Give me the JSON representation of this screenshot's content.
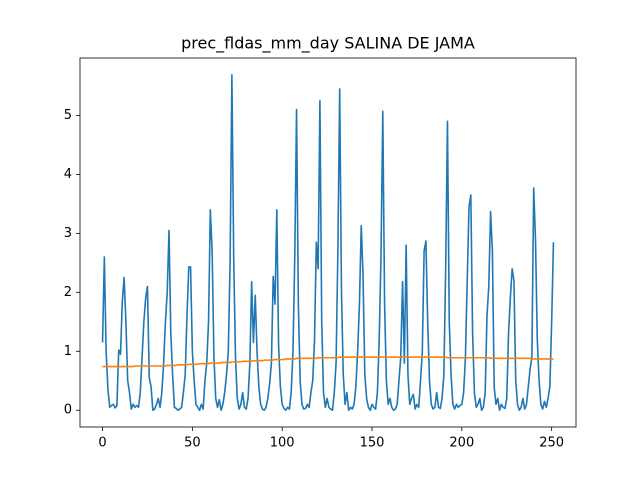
{
  "chart_data": {
    "type": "line",
    "title": "prec_fldas_mm_day SALINA DE JAMA",
    "x": [
      0,
      1,
      2,
      3,
      4,
      5,
      6,
      7,
      8,
      9,
      10,
      11,
      12,
      13,
      14,
      15,
      16,
      17,
      18,
      19,
      20,
      21,
      22,
      23,
      24,
      25,
      26,
      27,
      28,
      29,
      30,
      31,
      32,
      33,
      34,
      35,
      36,
      37,
      38,
      39,
      40,
      41,
      42,
      43,
      44,
      45,
      46,
      47,
      48,
      49,
      50,
      51,
      52,
      53,
      54,
      55,
      56,
      57,
      58,
      59,
      60,
      61,
      62,
      63,
      64,
      65,
      66,
      67,
      68,
      69,
      70,
      71,
      72,
      73,
      74,
      75,
      76,
      77,
      78,
      79,
      80,
      81,
      82,
      83,
      84,
      85,
      86,
      87,
      88,
      89,
      90,
      91,
      92,
      93,
      94,
      95,
      96,
      97,
      98,
      99,
      100,
      101,
      102,
      103,
      104,
      105,
      106,
      107,
      108,
      109,
      110,
      111,
      112,
      113,
      114,
      115,
      116,
      117,
      118,
      119,
      120,
      121,
      122,
      123,
      124,
      125,
      126,
      127,
      128,
      129,
      130,
      131,
      132,
      133,
      134,
      135,
      136,
      137,
      138,
      139,
      140,
      141,
      142,
      143,
      144,
      145,
      146,
      147,
      148,
      149,
      150,
      151,
      152,
      153,
      154,
      155,
      156,
      157,
      158,
      159,
      160,
      161,
      162,
      163,
      164,
      165,
      166,
      167,
      168,
      169,
      170,
      171,
      172,
      173,
      174,
      175,
      176,
      177,
      178,
      179,
      180,
      181,
      182,
      183,
      184,
      185,
      186,
      187,
      188,
      189,
      190,
      191,
      192,
      193,
      194,
      195,
      196,
      197,
      198,
      199,
      200,
      201,
      202,
      203,
      204,
      205,
      206,
      207,
      208,
      209,
      210,
      211,
      212,
      213,
      214,
      215,
      216,
      217,
      218,
      219,
      220,
      221,
      222,
      223,
      224,
      225,
      226,
      227,
      228,
      229,
      230,
      231,
      232,
      233,
      234,
      235,
      236,
      237,
      238,
      239,
      240,
      241,
      242,
      243,
      244,
      245,
      246,
      247,
      248,
      249,
      250,
      251
    ],
    "series": [
      {
        "color": "#1f77b4",
        "values": [
          1.15,
          2.6,
          1.0,
          0.35,
          0.05,
          0.08,
          0.1,
          0.04,
          0.08,
          1.02,
          0.95,
          1.85,
          2.25,
          1.5,
          0.5,
          0.3,
          0.02,
          0.1,
          0.05,
          0.08,
          0.05,
          0.3,
          0.9,
          1.5,
          1.9,
          2.1,
          0.55,
          0.4,
          0.0,
          0.02,
          0.1,
          0.2,
          0.05,
          0.3,
          0.8,
          1.5,
          2.0,
          3.05,
          1.3,
          0.6,
          0.05,
          0.03,
          0.0,
          0.02,
          0.05,
          0.3,
          0.6,
          1.6,
          2.43,
          2.43,
          1.0,
          0.5,
          0.1,
          0.05,
          0.0,
          0.1,
          0.02,
          0.5,
          0.8,
          1.5,
          3.4,
          2.7,
          0.9,
          0.2,
          0.05,
          0.18,
          0.0,
          0.1,
          0.3,
          0.6,
          1.0,
          2.5,
          5.69,
          2.6,
          0.9,
          0.2,
          0.02,
          0.1,
          0.3,
          0.05,
          0.02,
          0.2,
          0.8,
          2.18,
          1.15,
          1.95,
          1.0,
          0.4,
          0.1,
          0.02,
          0.0,
          0.05,
          0.2,
          0.45,
          0.8,
          2.27,
          1.8,
          3.4,
          1.1,
          0.4,
          0.1,
          0.03,
          0.0,
          0.05,
          0.02,
          0.3,
          1.0,
          2.6,
          5.1,
          1.8,
          0.5,
          0.1,
          0.02,
          0.03,
          0.1,
          0.05,
          0.3,
          0.5,
          1.2,
          2.85,
          2.4,
          5.25,
          1.5,
          0.3,
          0.05,
          0.2,
          0.05,
          0.02,
          0.0,
          0.3,
          0.8,
          2.7,
          5.45,
          2.0,
          0.6,
          0.1,
          0.3,
          0.0,
          0.05,
          0.02,
          0.1,
          0.4,
          1.0,
          1.8,
          3.13,
          2.3,
          0.6,
          0.2,
          0.05,
          0.0,
          0.1,
          0.05,
          0.02,
          0.3,
          1.2,
          2.6,
          5.07,
          1.8,
          0.5,
          0.1,
          0.2,
          0.05,
          0.0,
          0.02,
          0.1,
          0.5,
          0.9,
          2.18,
          0.8,
          2.8,
          0.6,
          0.1,
          0.2,
          0.27,
          0.02,
          0.1,
          0.05,
          0.5,
          1.0,
          2.7,
          2.87,
          1.5,
          0.5,
          0.1,
          0.02,
          0.05,
          0.3,
          0.05,
          0.03,
          0.2,
          0.6,
          2.4,
          4.9,
          1.5,
          0.6,
          0.1,
          0.02,
          0.1,
          0.05,
          0.08,
          0.1,
          0.3,
          0.9,
          2.2,
          3.45,
          3.65,
          1.3,
          0.3,
          0.05,
          0.1,
          0.2,
          0.0,
          0.05,
          0.3,
          1.6,
          2.1,
          3.37,
          2.7,
          0.4,
          0.1,
          0.2,
          0.0,
          0.1,
          0.05,
          0.03,
          0.2,
          1.3,
          1.9,
          2.4,
          2.2,
          0.5,
          0.1,
          0.0,
          0.05,
          0.2,
          0.02,
          0.1,
          0.4,
          0.7,
          0.9,
          3.77,
          2.9,
          1.2,
          0.5,
          0.1,
          0.02,
          0.15,
          0.05,
          0.2,
          0.4,
          1.5,
          2.85
        ]
      },
      {
        "color": "#ff7f0e",
        "values": [
          0.74,
          0.74,
          0.74,
          0.74,
          0.74,
          0.74,
          0.74,
          0.74,
          0.74,
          0.74,
          0.74,
          0.74,
          0.74,
          0.74,
          0.74,
          0.74,
          0.74,
          0.74,
          0.75,
          0.75,
          0.75,
          0.75,
          0.75,
          0.75,
          0.75,
          0.75,
          0.75,
          0.75,
          0.75,
          0.75,
          0.75,
          0.75,
          0.75,
          0.75,
          0.75,
          0.75,
          0.76,
          0.76,
          0.76,
          0.76,
          0.76,
          0.76,
          0.77,
          0.77,
          0.77,
          0.77,
          0.77,
          0.77,
          0.78,
          0.78,
          0.78,
          0.78,
          0.78,
          0.78,
          0.79,
          0.79,
          0.79,
          0.79,
          0.79,
          0.79,
          0.8,
          0.8,
          0.8,
          0.8,
          0.8,
          0.8,
          0.81,
          0.81,
          0.81,
          0.81,
          0.81,
          0.81,
          0.82,
          0.82,
          0.82,
          0.82,
          0.82,
          0.82,
          0.83,
          0.83,
          0.83,
          0.83,
          0.83,
          0.83,
          0.84,
          0.84,
          0.84,
          0.84,
          0.84,
          0.84,
          0.85,
          0.85,
          0.85,
          0.85,
          0.85,
          0.85,
          0.86,
          0.86,
          0.86,
          0.86,
          0.86,
          0.86,
          0.87,
          0.87,
          0.87,
          0.87,
          0.87,
          0.87,
          0.88,
          0.88,
          0.88,
          0.88,
          0.88,
          0.88,
          0.88,
          0.88,
          0.88,
          0.88,
          0.88,
          0.88,
          0.89,
          0.89,
          0.89,
          0.89,
          0.89,
          0.89,
          0.89,
          0.89,
          0.89,
          0.89,
          0.89,
          0.89,
          0.9,
          0.9,
          0.9,
          0.9,
          0.9,
          0.9,
          0.9,
          0.9,
          0.9,
          0.9,
          0.9,
          0.9,
          0.9,
          0.9,
          0.9,
          0.9,
          0.9,
          0.9,
          0.9,
          0.9,
          0.9,
          0.9,
          0.9,
          0.9,
          0.9,
          0.9,
          0.9,
          0.9,
          0.9,
          0.9,
          0.9,
          0.9,
          0.9,
          0.9,
          0.9,
          0.9,
          0.9,
          0.9,
          0.9,
          0.9,
          0.9,
          0.9,
          0.9,
          0.9,
          0.9,
          0.9,
          0.9,
          0.9,
          0.9,
          0.9,
          0.9,
          0.9,
          0.9,
          0.9,
          0.9,
          0.9,
          0.9,
          0.9,
          0.9,
          0.9,
          0.89,
          0.89,
          0.89,
          0.89,
          0.89,
          0.89,
          0.89,
          0.89,
          0.89,
          0.89,
          0.89,
          0.89,
          0.89,
          0.89,
          0.89,
          0.89,
          0.89,
          0.89,
          0.89,
          0.89,
          0.89,
          0.89,
          0.89,
          0.89,
          0.88,
          0.88,
          0.88,
          0.88,
          0.88,
          0.88,
          0.88,
          0.88,
          0.88,
          0.88,
          0.88,
          0.88,
          0.88,
          0.88,
          0.88,
          0.88,
          0.88,
          0.88,
          0.88,
          0.88,
          0.88,
          0.88,
          0.88,
          0.88,
          0.87,
          0.87,
          0.87,
          0.87,
          0.87,
          0.87,
          0.87,
          0.87,
          0.87,
          0.87,
          0.87,
          0.87
        ]
      }
    ],
    "xlim": [
      -12.55,
      263.55
    ],
    "xticks": [
      0,
      50,
      100,
      150,
      200,
      250
    ],
    "ylim": [
      -0.2845,
      5.9745
    ],
    "yticks": [
      0,
      1,
      2,
      3,
      4,
      5
    ],
    "grid": false
  }
}
